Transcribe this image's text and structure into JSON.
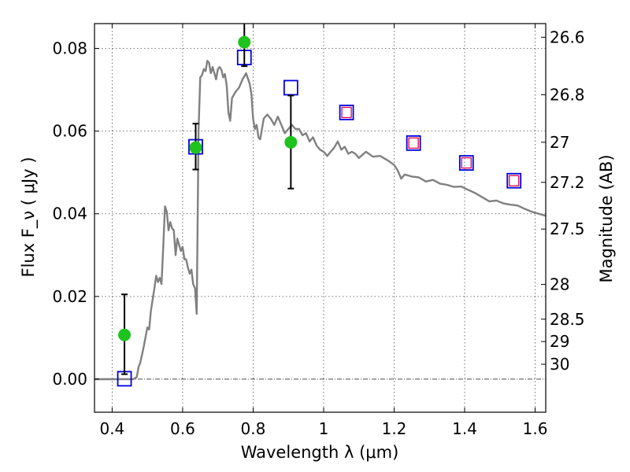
{
  "chart_data": {
    "type": "scatter",
    "xlabel": "Wavelength  λ (μm)",
    "ylabel": "Flux  F_ν  ( μJy )",
    "ylabel_right": "Magnitude (AB)",
    "xlim": [
      0.35,
      1.63
    ],
    "ylim": [
      -0.008,
      0.086
    ],
    "grid": true,
    "x_ticks": [
      0.4,
      0.6,
      0.8,
      1.0,
      1.2,
      1.4,
      1.6
    ],
    "x_tick_labels": [
      "0.4",
      "0.6",
      "0.8",
      "1",
      "1.2",
      "1.4",
      "1.6"
    ],
    "y_ticks": [
      0.0,
      0.02,
      0.04,
      0.06,
      0.08
    ],
    "y_tick_labels": [
      "0.00",
      "0.02",
      "0.04",
      "0.06",
      "0.08"
    ],
    "right_ticks": [
      {
        "flux": 0.0827,
        "label": "26.6"
      },
      {
        "flux": 0.0688,
        "label": "26.8"
      },
      {
        "flux": 0.0573,
        "label": "27"
      },
      {
        "flux": 0.0476,
        "label": "27.2"
      },
      {
        "flux": 0.0363,
        "label": "27.5"
      },
      {
        "flux": 0.0229,
        "label": "28"
      },
      {
        "flux": 0.0145,
        "label": "28.5"
      },
      {
        "flux": 0.0091,
        "label": "29"
      },
      {
        "flux": 0.0036,
        "label": "30"
      }
    ],
    "model_spectrum": [
      [
        0.35,
        0.0
      ],
      [
        0.46,
        0.0
      ],
      [
        0.47,
        0.0005
      ],
      [
        0.475,
        0.003
      ],
      [
        0.48,
        0.004
      ],
      [
        0.49,
        0.008
      ],
      [
        0.5,
        0.0125
      ],
      [
        0.505,
        0.012
      ],
      [
        0.51,
        0.0165
      ],
      [
        0.52,
        0.022
      ],
      [
        0.525,
        0.025
      ],
      [
        0.53,
        0.0235
      ],
      [
        0.535,
        0.0245
      ],
      [
        0.54,
        0.023
      ],
      [
        0.545,
        0.032
      ],
      [
        0.55,
        0.0418
      ],
      [
        0.555,
        0.0405
      ],
      [
        0.56,
        0.036
      ],
      [
        0.565,
        0.038
      ],
      [
        0.57,
        0.0365
      ],
      [
        0.575,
        0.036
      ],
      [
        0.58,
        0.03
      ],
      [
        0.585,
        0.034
      ],
      [
        0.59,
        0.0325
      ],
      [
        0.595,
        0.031
      ],
      [
        0.6,
        0.032
      ],
      [
        0.605,
        0.029
      ],
      [
        0.61,
        0.029
      ],
      [
        0.615,
        0.027
      ],
      [
        0.62,
        0.0255
      ],
      [
        0.625,
        0.0265
      ],
      [
        0.63,
        0.023
      ],
      [
        0.635,
        0.022
      ],
      [
        0.64,
        0.0158
      ],
      [
        0.645,
        0.06
      ],
      [
        0.65,
        0.073
      ],
      [
        0.655,
        0.0735
      ],
      [
        0.66,
        0.075
      ],
      [
        0.665,
        0.0745
      ],
      [
        0.67,
        0.077
      ],
      [
        0.675,
        0.0765
      ],
      [
        0.68,
        0.074
      ],
      [
        0.685,
        0.0755
      ],
      [
        0.69,
        0.074
      ],
      [
        0.695,
        0.0725
      ],
      [
        0.7,
        0.075
      ],
      [
        0.705,
        0.0755
      ],
      [
        0.71,
        0.0748
      ],
      [
        0.715,
        0.073
      ],
      [
        0.72,
        0.0738
      ],
      [
        0.725,
        0.071
      ],
      [
        0.73,
        0.0645
      ],
      [
        0.735,
        0.0625
      ],
      [
        0.74,
        0.068
      ],
      [
        0.75,
        0.0695
      ],
      [
        0.76,
        0.0705
      ],
      [
        0.77,
        0.0725
      ],
      [
        0.78,
        0.074
      ],
      [
        0.79,
        0.0715
      ],
      [
        0.795,
        0.069
      ],
      [
        0.8,
        0.063
      ],
      [
        0.805,
        0.0605
      ],
      [
        0.81,
        0.0615
      ],
      [
        0.815,
        0.0585
      ],
      [
        0.82,
        0.058
      ],
      [
        0.83,
        0.063
      ],
      [
        0.84,
        0.064
      ],
      [
        0.85,
        0.063
      ],
      [
        0.86,
        0.0615
      ],
      [
        0.87,
        0.0635
      ],
      [
        0.88,
        0.0615
      ],
      [
        0.89,
        0.0595
      ],
      [
        0.9,
        0.0605
      ],
      [
        0.91,
        0.0615
      ],
      [
        0.92,
        0.0605
      ],
      [
        0.93,
        0.0605
      ],
      [
        0.94,
        0.059
      ],
      [
        0.95,
        0.0595
      ],
      [
        0.96,
        0.0575
      ],
      [
        0.97,
        0.0585
      ],
      [
        0.98,
        0.0565
      ],
      [
        0.99,
        0.0555
      ],
      [
        1.0,
        0.055
      ],
      [
        1.01,
        0.054
      ],
      [
        1.02,
        0.055
      ],
      [
        1.03,
        0.056
      ],
      [
        1.04,
        0.0575
      ],
      [
        1.05,
        0.0555
      ],
      [
        1.06,
        0.0562
      ],
      [
        1.07,
        0.0545
      ],
      [
        1.08,
        0.055
      ],
      [
        1.09,
        0.0545
      ],
      [
        1.1,
        0.0535
      ],
      [
        1.12,
        0.055
      ],
      [
        1.14,
        0.0538
      ],
      [
        1.16,
        0.054
      ],
      [
        1.18,
        0.053
      ],
      [
        1.2,
        0.0518
      ],
      [
        1.21,
        0.0505
      ],
      [
        1.22,
        0.0485
      ],
      [
        1.23,
        0.0495
      ],
      [
        1.25,
        0.049
      ],
      [
        1.27,
        0.0488
      ],
      [
        1.29,
        0.0478
      ],
      [
        1.31,
        0.0482
      ],
      [
        1.33,
        0.0473
      ],
      [
        1.35,
        0.047
      ],
      [
        1.37,
        0.0465
      ],
      [
        1.39,
        0.0466
      ],
      [
        1.41,
        0.0458
      ],
      [
        1.43,
        0.045
      ],
      [
        1.45,
        0.044
      ],
      [
        1.47,
        0.043
      ],
      [
        1.49,
        0.0432
      ],
      [
        1.51,
        0.0425
      ],
      [
        1.53,
        0.0422
      ],
      [
        1.55,
        0.042
      ],
      [
        1.57,
        0.0412
      ],
      [
        1.59,
        0.0405
      ],
      [
        1.61,
        0.04
      ],
      [
        1.63,
        0.0395
      ]
    ],
    "observed": [
      {
        "x": 0.435,
        "y": 0.0107,
        "yerr_low": 0.0012,
        "yerr_high": 0.0205
      },
      {
        "x": 0.637,
        "y": 0.056,
        "yerr_low": 0.0507,
        "yerr_high": 0.0618
      },
      {
        "x": 0.775,
        "y": 0.0815,
        "yerr_low": 0.0757,
        "yerr_high": 0.086
      },
      {
        "x": 0.907,
        "y": 0.0573,
        "yerr_low": 0.0461,
        "yerr_high": 0.0686
      }
    ],
    "model_photometry": [
      {
        "x": 0.435,
        "y": 0.0001
      },
      {
        "x": 0.637,
        "y": 0.0562
      },
      {
        "x": 0.775,
        "y": 0.0778
      },
      {
        "x": 0.907,
        "y": 0.0705
      },
      {
        "x": 1.065,
        "y": 0.0645,
        "inner": true
      },
      {
        "x": 1.255,
        "y": 0.0571,
        "inner": true
      },
      {
        "x": 1.405,
        "y": 0.0523,
        "inner": true
      },
      {
        "x": 1.54,
        "y": 0.048,
        "inner": true
      }
    ],
    "colors": {
      "model": "#808080",
      "observed": "#1ec31e",
      "model_square": "#0000dd",
      "upper_limit_square": "#e0004c"
    }
  }
}
